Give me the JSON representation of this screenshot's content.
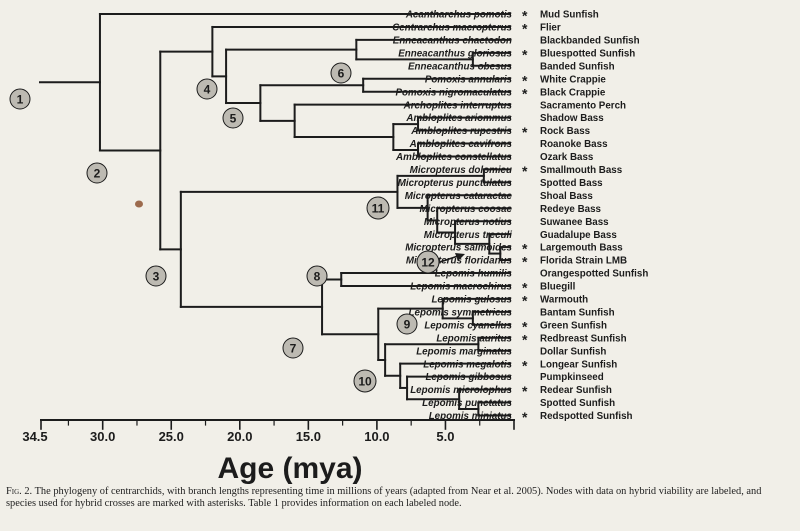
{
  "figure": {
    "axis_title": "Age (mya)",
    "axis_ticks": [
      {
        "label": "34.5",
        "value": 34.5
      },
      {
        "label": "30.0",
        "value": 30.0
      },
      {
        "label": "25.0",
        "value": 25.0
      },
      {
        "label": "20.0",
        "value": 20.0
      },
      {
        "label": "15.0",
        "value": 15.0
      },
      {
        "label": "10.0",
        "value": 10.0
      },
      {
        "label": "5.0",
        "value": 5.0
      }
    ],
    "axis_range_mya": [
      34.5,
      0
    ],
    "taxa": [
      {
        "scientific": "Acantharchus pomotis",
        "common": "Mud Sunfish",
        "marked": "*"
      },
      {
        "scientific": "Centrarchus macropterus",
        "common": "Flier",
        "marked": "*"
      },
      {
        "scientific": "Enneacanthus chaetodon",
        "common": "Blackbanded Sunfish",
        "marked": ""
      },
      {
        "scientific": "Enneacanthus gloriosus",
        "common": "Bluespotted Sunfish",
        "marked": "*"
      },
      {
        "scientific": "Enneacanthus obesus",
        "common": "Banded Sunfish",
        "marked": ""
      },
      {
        "scientific": "Pomoxis annularis",
        "common": "White Crappie",
        "marked": "*"
      },
      {
        "scientific": "Pomoxis nigromaculatus",
        "common": "Black Crappie",
        "marked": "*"
      },
      {
        "scientific": "Archoplites interruptus",
        "common": "Sacramento Perch",
        "marked": ""
      },
      {
        "scientific": "Ambloplites ariommus",
        "common": "Shadow Bass",
        "marked": ""
      },
      {
        "scientific": "Ambloplites rupestris",
        "common": "Rock Bass",
        "marked": "*"
      },
      {
        "scientific": "Ambloplites cavifrons",
        "common": "Roanoke Bass",
        "marked": ""
      },
      {
        "scientific": "Ambloplites constellatus",
        "common": "Ozark Bass",
        "marked": ""
      },
      {
        "scientific": "Micropterus dolomieu",
        "common": "Smallmouth Bass",
        "marked": "*"
      },
      {
        "scientific": "Micropterus punctulatus",
        "common": "Spotted Bass",
        "marked": ""
      },
      {
        "scientific": "Micropterus cataractae",
        "common": "Shoal Bass",
        "marked": ""
      },
      {
        "scientific": "Micropterus coosae",
        "common": "Redeye Bass",
        "marked": ""
      },
      {
        "scientific": "Micropterus notius",
        "common": "Suwanee Bass",
        "marked": ""
      },
      {
        "scientific": "Micropterus treculi",
        "common": "Guadalupe Bass",
        "marked": ""
      },
      {
        "scientific": "Micropterus salmoides",
        "common": "Largemouth Bass",
        "marked": "*"
      },
      {
        "scientific": "Micropterus floridanus",
        "common": "Florida Strain LMB",
        "marked": "*"
      },
      {
        "scientific": "Lepomis humilis",
        "common": "Orangespotted Sunfish",
        "marked": ""
      },
      {
        "scientific": "Lepomis macrochirus",
        "common": "Bluegill",
        "marked": "*"
      },
      {
        "scientific": "Lepomis gulosus",
        "common": "Warmouth",
        "marked": "*"
      },
      {
        "scientific": "Lepomis symmetricus",
        "common": "Bantam Sunfish",
        "marked": ""
      },
      {
        "scientific": "Lepomis cyanellus",
        "common": "Green Sunfish",
        "marked": "*"
      },
      {
        "scientific": "Lepomis auritus",
        "common": "Redbreast Sunfish",
        "marked": "*"
      },
      {
        "scientific": "Lepomis marginatus",
        "common": "Dollar Sunfish",
        "marked": ""
      },
      {
        "scientific": "Lepomis megalotis",
        "common": "Longear Sunfish",
        "marked": "*"
      },
      {
        "scientific": "Lepomis gibbosus",
        "common": "Pumpkinseed",
        "marked": ""
      },
      {
        "scientific": "Lepomis microlophus",
        "common": "Redear Sunfish",
        "marked": "*"
      },
      {
        "scientific": "Lepomis punctatus",
        "common": "Spotted Sunfish",
        "marked": ""
      },
      {
        "scientific": "Lepomis miniatus",
        "common": "Redspotted Sunfish",
        "marked": "*"
      }
    ],
    "node_labels": [
      "1",
      "2",
      "3",
      "4",
      "5",
      "6",
      "7",
      "8",
      "9",
      "10",
      "11",
      "12"
    ]
  },
  "caption": {
    "fig_label": "Fig. 2.",
    "text": "The phylogeny of centrarchids, with branch lengths representing time in millions of years (adapted from Near et al. 2005). Nodes with data on hybrid viability are labeled, and species used for hybrid crosses are marked with asterisks. Table 1 provides information on each labeled node."
  }
}
